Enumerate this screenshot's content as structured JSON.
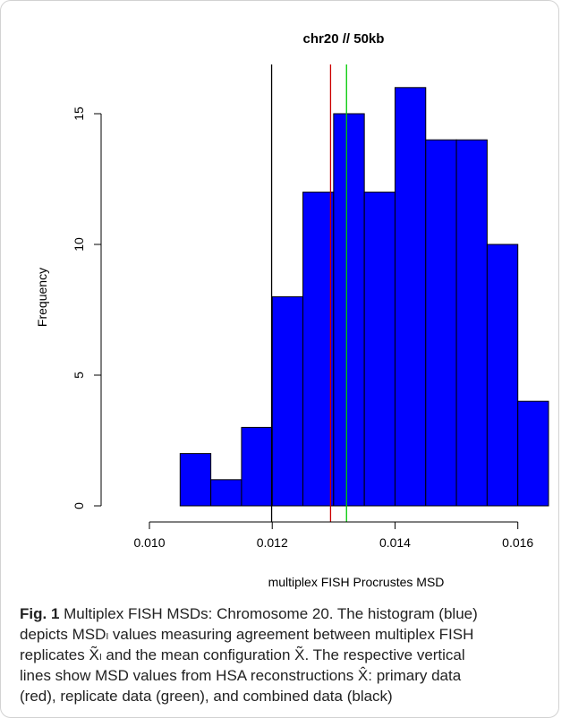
{
  "chart_data": {
    "type": "bar",
    "title": "chr20 // 50kb",
    "xlabel": "multiplex FISH Procrustes MSD",
    "ylabel": "Frequency",
    "bins": [
      {
        "start": 0.0105,
        "end": 0.011,
        "count": 2
      },
      {
        "start": 0.011,
        "end": 0.0115,
        "count": 1
      },
      {
        "start": 0.0115,
        "end": 0.012,
        "count": 3
      },
      {
        "start": 0.012,
        "end": 0.0125,
        "count": 8
      },
      {
        "start": 0.0125,
        "end": 0.013,
        "count": 12
      },
      {
        "start": 0.013,
        "end": 0.0135,
        "count": 15
      },
      {
        "start": 0.0135,
        "end": 0.014,
        "count": 12
      },
      {
        "start": 0.014,
        "end": 0.0145,
        "count": 16
      },
      {
        "start": 0.0145,
        "end": 0.015,
        "count": 14
      },
      {
        "start": 0.015,
        "end": 0.0155,
        "count": 14
      },
      {
        "start": 0.0155,
        "end": 0.016,
        "count": 10
      },
      {
        "start": 0.016,
        "end": 0.0165,
        "count": 4
      }
    ],
    "xlim": [
      0.01,
      0.0165
    ],
    "ylim": [
      0,
      16
    ],
    "x_ticks": [
      0.01,
      0.012,
      0.014,
      0.016
    ],
    "x_tick_labels": [
      "0.010",
      "0.012",
      "0.014",
      "0.016"
    ],
    "y_ticks": [
      0,
      5,
      10,
      15
    ],
    "y_tick_labels": [
      "0",
      "5",
      "10",
      "15"
    ],
    "bar_color": "#0000ff",
    "reference_lines": [
      {
        "x": 0.01295,
        "color": "#cc0000"
      },
      {
        "x": 0.01321,
        "color": "#00cc00"
      },
      {
        "x": 0.01199,
        "color": "#000000"
      }
    ],
    "grid": false,
    "legend": "none"
  },
  "caption": {
    "label": "Fig. 1",
    "text": "Multiplex FISH MSDs: Chromosome 20. The histogram (blue)\ndepicts MSDₗ values measuring agreement between multiplex FISH\nreplicates X̃ₗ and the mean configuration X̃. The respective vertical\nlines show MSD values from HSA reconstructions X̂: primary data\n(red), replicate data (green), and combined data (black)"
  }
}
